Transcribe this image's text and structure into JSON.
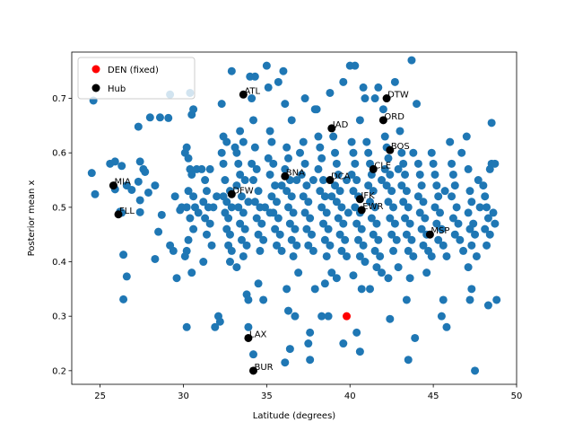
{
  "chart_data": {
    "type": "scatter",
    "xlabel": "Latitude (degrees)",
    "ylabel": "Posterior mean x",
    "xlim": [
      23.3,
      50.0
    ],
    "ylim": [
      0.175,
      0.785
    ],
    "xticks": [
      25,
      30,
      35,
      40,
      45,
      50
    ],
    "yticks": [
      0.2,
      0.3,
      0.4,
      0.5,
      0.6,
      0.7
    ],
    "grid": false,
    "legend": {
      "position": "top-left",
      "entries": [
        {
          "label": "DEN (fixed)",
          "color": "#ff0000"
        },
        {
          "label": "Hub",
          "color": "#000000"
        }
      ]
    },
    "colors": {
      "airports": "#1f77b4",
      "fixed": "#ff0000",
      "hub": "#000000"
    },
    "fixed": {
      "label": "DEN (fixed)",
      "x": 39.8,
      "y": 0.3
    },
    "hubs": [
      {
        "name": "ATL",
        "x": 33.6,
        "y": 0.707
      },
      {
        "name": "DTW",
        "x": 42.2,
        "y": 0.7
      },
      {
        "name": "ORD",
        "x": 42.0,
        "y": 0.66
      },
      {
        "name": "IAD",
        "x": 38.9,
        "y": 0.645
      },
      {
        "name": "BOS",
        "x": 42.4,
        "y": 0.605
      },
      {
        "name": "CLE",
        "x": 41.4,
        "y": 0.57
      },
      {
        "name": "BNA",
        "x": 36.1,
        "y": 0.557
      },
      {
        "name": "DCA",
        "x": 38.8,
        "y": 0.55
      },
      {
        "name": "MIA",
        "x": 25.8,
        "y": 0.54
      },
      {
        "name": "DFW",
        "x": 32.9,
        "y": 0.524
      },
      {
        "name": "JFK",
        "x": 40.6,
        "y": 0.515
      },
      {
        "name": "EWR",
        "x": 40.7,
        "y": 0.495
      },
      {
        "name": "FLL",
        "x": 26.1,
        "y": 0.487
      },
      {
        "name": "MSP",
        "x": 44.8,
        "y": 0.45
      },
      {
        "name": "LAX",
        "x": 33.9,
        "y": 0.26
      },
      {
        "name": "BUR",
        "x": 34.2,
        "y": 0.2
      }
    ],
    "points": [
      [
        24.6,
        0.696
      ],
      [
        24.5,
        0.563
      ],
      [
        24.7,
        0.524
      ],
      [
        25.6,
        0.58
      ],
      [
        25.9,
        0.584
      ],
      [
        26.3,
        0.576
      ],
      [
        25.9,
        0.533
      ],
      [
        26.6,
        0.54
      ],
      [
        26.9,
        0.532
      ],
      [
        26.2,
        0.492
      ],
      [
        26.3,
        0.49
      ],
      [
        26.4,
        0.413
      ],
      [
        26.6,
        0.373
      ],
      [
        26.4,
        0.331
      ],
      [
        27.3,
        0.648
      ],
      [
        27.4,
        0.584
      ],
      [
        27.6,
        0.57
      ],
      [
        27.7,
        0.565
      ],
      [
        27.3,
        0.547
      ],
      [
        27.4,
        0.513
      ],
      [
        27.4,
        0.491
      ],
      [
        27.9,
        0.527
      ],
      [
        28.0,
        0.665
      ],
      [
        28.3,
        0.54
      ],
      [
        28.5,
        0.455
      ],
      [
        28.3,
        0.405
      ],
      [
        28.6,
        0.665
      ],
      [
        28.7,
        0.486
      ],
      [
        29.2,
        0.707
      ],
      [
        29.1,
        0.664
      ],
      [
        29.2,
        0.43
      ],
      [
        29.4,
        0.42
      ],
      [
        29.5,
        0.52
      ],
      [
        29.6,
        0.37
      ],
      [
        29.8,
        0.495
      ],
      [
        29.9,
        0.5
      ],
      [
        30.1,
        0.6
      ],
      [
        30.2,
        0.61
      ],
      [
        30.3,
        0.59
      ],
      [
        30.5,
        0.67
      ],
      [
        30.4,
        0.71
      ],
      [
        30.6,
        0.68
      ],
      [
        30.4,
        0.57
      ],
      [
        30.5,
        0.56
      ],
      [
        30.3,
        0.53
      ],
      [
        30.6,
        0.52
      ],
      [
        30.2,
        0.5
      ],
      [
        30.4,
        0.48
      ],
      [
        30.6,
        0.46
      ],
      [
        30.3,
        0.44
      ],
      [
        30.2,
        0.42
      ],
      [
        30.1,
        0.41
      ],
      [
        30.2,
        0.28
      ],
      [
        30.5,
        0.38
      ],
      [
        30.7,
        0.5
      ],
      [
        30.8,
        0.57
      ],
      [
        30.9,
        0.49
      ],
      [
        31.1,
        0.57
      ],
      [
        31.3,
        0.55
      ],
      [
        31.4,
        0.53
      ],
      [
        31.2,
        0.51
      ],
      [
        31.5,
        0.5
      ],
      [
        31.3,
        0.48
      ],
      [
        31.6,
        0.47
      ],
      [
        31.4,
        0.45
      ],
      [
        31.2,
        0.4
      ],
      [
        31.6,
        0.57
      ],
      [
        31.8,
        0.5
      ],
      [
        31.9,
        0.28
      ],
      [
        31.7,
        0.43
      ],
      [
        32.0,
        0.52
      ],
      [
        32.1,
        0.3
      ],
      [
        32.2,
        0.29
      ],
      [
        32.3,
        0.69
      ],
      [
        32.4,
        0.63
      ],
      [
        32.3,
        0.6
      ],
      [
        32.5,
        0.55
      ],
      [
        32.4,
        0.52
      ],
      [
        32.6,
        0.51
      ],
      [
        32.5,
        0.49
      ],
      [
        32.7,
        0.48
      ],
      [
        32.6,
        0.46
      ],
      [
        32.8,
        0.45
      ],
      [
        32.7,
        0.43
      ],
      [
        32.9,
        0.42
      ],
      [
        32.8,
        0.4
      ],
      [
        32.9,
        0.75
      ],
      [
        32.6,
        0.62
      ],
      [
        32.4,
        0.58
      ],
      [
        32.8,
        0.53
      ],
      [
        32.9,
        0.5
      ],
      [
        33.1,
        0.61
      ],
      [
        33.2,
        0.6
      ],
      [
        33.3,
        0.58
      ],
      [
        33.4,
        0.56
      ],
      [
        33.2,
        0.54
      ],
      [
        33.5,
        0.52
      ],
      [
        33.3,
        0.5
      ],
      [
        33.6,
        0.49
      ],
      [
        33.4,
        0.47
      ],
      [
        33.7,
        0.46
      ],
      [
        33.5,
        0.44
      ],
      [
        33.8,
        0.43
      ],
      [
        33.6,
        0.41
      ],
      [
        33.2,
        0.39
      ],
      [
        33.8,
        0.34
      ],
      [
        33.9,
        0.33
      ],
      [
        33.9,
        0.28
      ],
      [
        33.4,
        0.64
      ],
      [
        33.6,
        0.62
      ],
      [
        33.7,
        0.55
      ],
      [
        33.9,
        0.51
      ],
      [
        34.0,
        0.74
      ],
      [
        34.1,
        0.7
      ],
      [
        34.2,
        0.66
      ],
      [
        34.3,
        0.61
      ],
      [
        34.1,
        0.58
      ],
      [
        34.4,
        0.57
      ],
      [
        34.2,
        0.55
      ],
      [
        34.5,
        0.53
      ],
      [
        34.3,
        0.51
      ],
      [
        34.6,
        0.5
      ],
      [
        34.4,
        0.48
      ],
      [
        34.7,
        0.47
      ],
      [
        34.5,
        0.45
      ],
      [
        34.8,
        0.44
      ],
      [
        34.6,
        0.42
      ],
      [
        34.2,
        0.23
      ],
      [
        34.5,
        0.36
      ],
      [
        34.8,
        0.33
      ],
      [
        34.3,
        0.74
      ],
      [
        34.9,
        0.5
      ],
      [
        35.0,
        0.76
      ],
      [
        35.1,
        0.72
      ],
      [
        35.2,
        0.64
      ],
      [
        35.3,
        0.62
      ],
      [
        35.1,
        0.59
      ],
      [
        35.4,
        0.58
      ],
      [
        35.2,
        0.56
      ],
      [
        35.5,
        0.54
      ],
      [
        35.3,
        0.52
      ],
      [
        35.6,
        0.51
      ],
      [
        35.4,
        0.49
      ],
      [
        35.7,
        0.48
      ],
      [
        35.5,
        0.46
      ],
      [
        35.8,
        0.45
      ],
      [
        35.6,
        0.43
      ],
      [
        35.9,
        0.42
      ],
      [
        35.2,
        0.49
      ],
      [
        35.7,
        0.73
      ],
      [
        35.9,
        0.54
      ],
      [
        36.0,
        0.75
      ],
      [
        36.1,
        0.69
      ],
      [
        36.2,
        0.61
      ],
      [
        36.3,
        0.59
      ],
      [
        36.1,
        0.57
      ],
      [
        36.4,
        0.55
      ],
      [
        36.2,
        0.53
      ],
      [
        36.5,
        0.52
      ],
      [
        36.3,
        0.5
      ],
      [
        36.6,
        0.49
      ],
      [
        36.4,
        0.47
      ],
      [
        36.7,
        0.46
      ],
      [
        36.5,
        0.44
      ],
      [
        36.8,
        0.43
      ],
      [
        36.6,
        0.41
      ],
      [
        36.9,
        0.38
      ],
      [
        36.2,
        0.35
      ],
      [
        36.3,
        0.31
      ],
      [
        36.7,
        0.3
      ],
      [
        36.4,
        0.24
      ],
      [
        36.1,
        0.215
      ],
      [
        36.5,
        0.66
      ],
      [
        36.8,
        0.55
      ],
      [
        37.0,
        0.6
      ],
      [
        37.2,
        0.62
      ],
      [
        37.3,
        0.58
      ],
      [
        37.1,
        0.56
      ],
      [
        37.4,
        0.54
      ],
      [
        37.2,
        0.52
      ],
      [
        37.5,
        0.51
      ],
      [
        37.3,
        0.49
      ],
      [
        37.6,
        0.48
      ],
      [
        37.4,
        0.46
      ],
      [
        37.7,
        0.45
      ],
      [
        37.5,
        0.43
      ],
      [
        37.8,
        0.42
      ],
      [
        37.6,
        0.27
      ],
      [
        37.9,
        0.68
      ],
      [
        37.3,
        0.7
      ],
      [
        37.5,
        0.25
      ],
      [
        37.6,
        0.22
      ],
      [
        37.9,
        0.35
      ],
      [
        37.8,
        0.55
      ],
      [
        38.0,
        0.68
      ],
      [
        38.1,
        0.63
      ],
      [
        38.2,
        0.61
      ],
      [
        38.3,
        0.59
      ],
      [
        38.1,
        0.57
      ],
      [
        38.4,
        0.55
      ],
      [
        38.2,
        0.53
      ],
      [
        38.5,
        0.52
      ],
      [
        38.3,
        0.5
      ],
      [
        38.6,
        0.49
      ],
      [
        38.4,
        0.47
      ],
      [
        38.7,
        0.46
      ],
      [
        38.5,
        0.44
      ],
      [
        38.8,
        0.43
      ],
      [
        38.6,
        0.41
      ],
      [
        38.9,
        0.38
      ],
      [
        38.3,
        0.3
      ],
      [
        38.7,
        0.3
      ],
      [
        38.5,
        0.36
      ],
      [
        38.8,
        0.71
      ],
      [
        38.9,
        0.52
      ],
      [
        39.0,
        0.63
      ],
      [
        39.1,
        0.6
      ],
      [
        39.2,
        0.58
      ],
      [
        39.3,
        0.56
      ],
      [
        39.1,
        0.54
      ],
      [
        39.4,
        0.53
      ],
      [
        39.2,
        0.51
      ],
      [
        39.5,
        0.5
      ],
      [
        39.3,
        0.48
      ],
      [
        39.6,
        0.47
      ],
      [
        39.4,
        0.45
      ],
      [
        39.7,
        0.44
      ],
      [
        39.5,
        0.42
      ],
      [
        39.8,
        0.41
      ],
      [
        39.6,
        0.25
      ],
      [
        39.2,
        0.37
      ],
      [
        39.6,
        0.73
      ],
      [
        39.8,
        0.55
      ],
      [
        39.9,
        0.49
      ],
      [
        40.0,
        0.76
      ],
      [
        40.1,
        0.62
      ],
      [
        40.2,
        0.6
      ],
      [
        40.3,
        0.58
      ],
      [
        40.1,
        0.56
      ],
      [
        40.4,
        0.55
      ],
      [
        40.2,
        0.53
      ],
      [
        40.5,
        0.52
      ],
      [
        40.3,
        0.5
      ],
      [
        40.6,
        0.49
      ],
      [
        40.4,
        0.47
      ],
      [
        40.7,
        0.46
      ],
      [
        40.5,
        0.44
      ],
      [
        40.8,
        0.43
      ],
      [
        40.6,
        0.41
      ],
      [
        40.9,
        0.4
      ],
      [
        40.2,
        0.375
      ],
      [
        40.7,
        0.35
      ],
      [
        40.4,
        0.27
      ],
      [
        40.6,
        0.235
      ],
      [
        40.3,
        0.76
      ],
      [
        40.8,
        0.72
      ],
      [
        40.9,
        0.7
      ],
      [
        40.6,
        0.66
      ],
      [
        41.0,
        0.62
      ],
      [
        41.1,
        0.6
      ],
      [
        41.2,
        0.58
      ],
      [
        41.3,
        0.56
      ],
      [
        41.1,
        0.54
      ],
      [
        41.4,
        0.53
      ],
      [
        41.2,
        0.51
      ],
      [
        41.5,
        0.5
      ],
      [
        41.3,
        0.48
      ],
      [
        41.6,
        0.47
      ],
      [
        41.4,
        0.45
      ],
      [
        41.7,
        0.44
      ],
      [
        41.5,
        0.42
      ],
      [
        41.8,
        0.41
      ],
      [
        41.6,
        0.39
      ],
      [
        41.9,
        0.38
      ],
      [
        41.2,
        0.35
      ],
      [
        41.5,
        0.7
      ],
      [
        41.7,
        0.72
      ],
      [
        41.9,
        0.55
      ],
      [
        42.0,
        0.68
      ],
      [
        42.1,
        0.63
      ],
      [
        42.2,
        0.61
      ],
      [
        42.3,
        0.59
      ],
      [
        42.1,
        0.57
      ],
      [
        42.4,
        0.56
      ],
      [
        42.2,
        0.54
      ],
      [
        42.5,
        0.53
      ],
      [
        42.3,
        0.51
      ],
      [
        42.6,
        0.5
      ],
      [
        42.4,
        0.48
      ],
      [
        42.7,
        0.47
      ],
      [
        42.5,
        0.45
      ],
      [
        42.8,
        0.44
      ],
      [
        42.6,
        0.42
      ],
      [
        42.9,
        0.39
      ],
      [
        42.3,
        0.37
      ],
      [
        42.4,
        0.295
      ],
      [
        42.7,
        0.73
      ],
      [
        42.9,
        0.57
      ],
      [
        43.0,
        0.64
      ],
      [
        43.1,
        0.6
      ],
      [
        43.2,
        0.58
      ],
      [
        43.3,
        0.56
      ],
      [
        43.1,
        0.54
      ],
      [
        43.4,
        0.53
      ],
      [
        43.2,
        0.51
      ],
      [
        43.5,
        0.5
      ],
      [
        43.3,
        0.48
      ],
      [
        43.6,
        0.47
      ],
      [
        43.4,
        0.45
      ],
      [
        43.7,
        0.44
      ],
      [
        43.5,
        0.42
      ],
      [
        43.8,
        0.41
      ],
      [
        43.4,
        0.33
      ],
      [
        43.6,
        0.37
      ],
      [
        43.5,
        0.22
      ],
      [
        43.9,
        0.26
      ],
      [
        43.7,
        0.77
      ],
      [
        43.8,
        0.6
      ],
      [
        44.0,
        0.69
      ],
      [
        44.1,
        0.58
      ],
      [
        44.2,
        0.56
      ],
      [
        44.3,
        0.54
      ],
      [
        44.1,
        0.52
      ],
      [
        44.4,
        0.51
      ],
      [
        44.2,
        0.49
      ],
      [
        44.5,
        0.48
      ],
      [
        44.3,
        0.46
      ],
      [
        44.6,
        0.45
      ],
      [
        44.4,
        0.43
      ],
      [
        44.7,
        0.42
      ],
      [
        44.9,
        0.41
      ],
      [
        44.6,
        0.38
      ],
      [
        44.9,
        0.6
      ],
      [
        45.0,
        0.58
      ],
      [
        45.1,
        0.56
      ],
      [
        45.2,
        0.54
      ],
      [
        45.3,
        0.52
      ],
      [
        45.1,
        0.5
      ],
      [
        45.4,
        0.49
      ],
      [
        45.2,
        0.47
      ],
      [
        45.5,
        0.46
      ],
      [
        45.3,
        0.44
      ],
      [
        45.6,
        0.43
      ],
      [
        45.8,
        0.41
      ],
      [
        45.6,
        0.33
      ],
      [
        45.5,
        0.3
      ],
      [
        45.8,
        0.28
      ],
      [
        45.7,
        0.53
      ],
      [
        46.0,
        0.62
      ],
      [
        46.1,
        0.58
      ],
      [
        46.2,
        0.56
      ],
      [
        46.3,
        0.54
      ],
      [
        46.1,
        0.52
      ],
      [
        46.4,
        0.5
      ],
      [
        46.2,
        0.48
      ],
      [
        46.5,
        0.47
      ],
      [
        46.3,
        0.45
      ],
      [
        46.6,
        0.44
      ],
      [
        46.8,
        0.42
      ],
      [
        46.7,
        0.6
      ],
      [
        47.0,
        0.63
      ],
      [
        47.1,
        0.57
      ],
      [
        47.2,
        0.53
      ],
      [
        47.3,
        0.51
      ],
      [
        47.1,
        0.49
      ],
      [
        47.4,
        0.47
      ],
      [
        47.2,
        0.46
      ],
      [
        47.5,
        0.45
      ],
      [
        47.3,
        0.43
      ],
      [
        47.6,
        0.41
      ],
      [
        47.1,
        0.39
      ],
      [
        47.3,
        0.35
      ],
      [
        47.2,
        0.33
      ],
      [
        47.8,
        0.5
      ],
      [
        47.7,
        0.55
      ],
      [
        47.5,
        0.2
      ],
      [
        48.0,
        0.54
      ],
      [
        48.1,
        0.52
      ],
      [
        48.2,
        0.5
      ],
      [
        48.3,
        0.48
      ],
      [
        48.1,
        0.46
      ],
      [
        48.4,
        0.45
      ],
      [
        48.2,
        0.43
      ],
      [
        48.5,
        0.58
      ],
      [
        48.4,
        0.57
      ],
      [
        48.6,
        0.49
      ],
      [
        48.7,
        0.47
      ],
      [
        48.3,
        0.32
      ],
      [
        48.8,
        0.33
      ],
      [
        48.5,
        0.655
      ],
      [
        48.7,
        0.58
      ]
    ]
  }
}
